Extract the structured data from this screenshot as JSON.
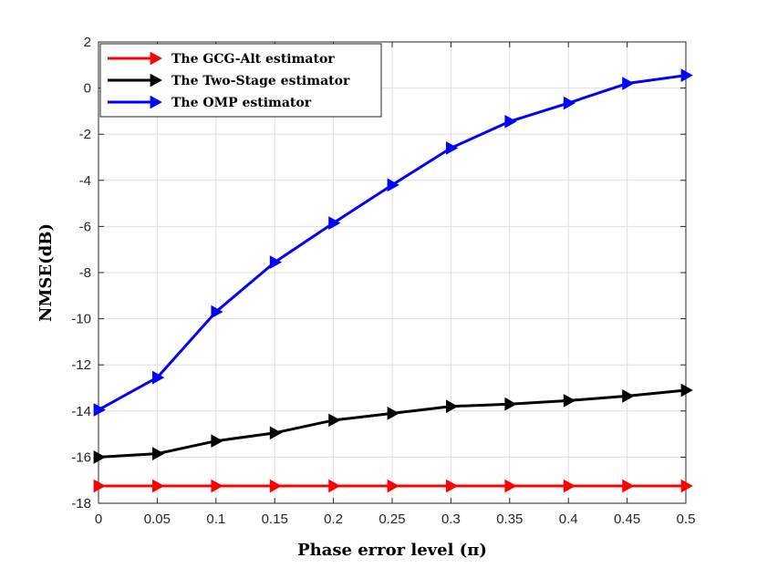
{
  "chart_data": {
    "type": "line",
    "title": "",
    "xlabel": "Phase error level (π)",
    "ylabel": "NMSE(dB)",
    "xlim": [
      0,
      0.5
    ],
    "ylim": [
      -18,
      2
    ],
    "grid": true,
    "legend_position": "top-left",
    "x": [
      0,
      0.05,
      0.1,
      0.15,
      0.2,
      0.25,
      0.3,
      0.35,
      0.4,
      0.45,
      0.5
    ],
    "x_tick_labels": [
      "0",
      "0.05",
      "0.1",
      "0.15",
      "0.2",
      "0.25",
      "0.3",
      "0.35",
      "0.4",
      "0.45",
      "0.5"
    ],
    "y_tick_labels": [
      "-18",
      "-16",
      "-14",
      "-12",
      "-10",
      "-8",
      "-6",
      "-4",
      "-2",
      "0",
      "2"
    ],
    "series": [
      {
        "name": "The GCG-Alt estimator",
        "color": "#ff0000",
        "marker": "right-triangle",
        "values": [
          -17.25,
          -17.25,
          -17.25,
          -17.25,
          -17.25,
          -17.25,
          -17.25,
          -17.25,
          -17.25,
          -17.25,
          -17.25
        ]
      },
      {
        "name": "The Two-Stage estimator",
        "color": "#000000",
        "marker": "right-triangle",
        "values": [
          -16.0,
          -15.85,
          -15.3,
          -14.95,
          -14.4,
          -14.1,
          -13.8,
          -13.7,
          -13.55,
          -13.35,
          -13.1
        ]
      },
      {
        "name": "The OMP estimator",
        "color": "#0000ff",
        "marker": "right-triangle",
        "values": [
          -13.95,
          -12.55,
          -9.7,
          -7.55,
          -5.85,
          -4.2,
          -2.6,
          -1.45,
          -0.65,
          0.2,
          0.55
        ]
      }
    ]
  }
}
